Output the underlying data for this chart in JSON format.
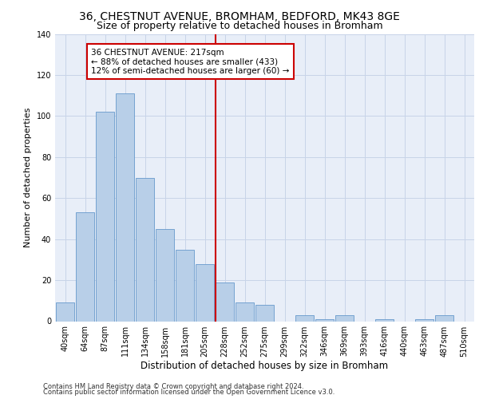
{
  "title_line1": "36, CHESTNUT AVENUE, BROMHAM, BEDFORD, MK43 8GE",
  "title_line2": "Size of property relative to detached houses in Bromham",
  "xlabel": "Distribution of detached houses by size in Bromham",
  "ylabel": "Number of detached properties",
  "bin_labels": [
    "40sqm",
    "64sqm",
    "87sqm",
    "111sqm",
    "134sqm",
    "158sqm",
    "181sqm",
    "205sqm",
    "228sqm",
    "252sqm",
    "275sqm",
    "299sqm",
    "322sqm",
    "346sqm",
    "369sqm",
    "393sqm",
    "416sqm",
    "440sqm",
    "463sqm",
    "487sqm",
    "510sqm"
  ],
  "bar_values": [
    9,
    53,
    102,
    111,
    70,
    45,
    35,
    28,
    19,
    9,
    8,
    0,
    3,
    1,
    3,
    0,
    1,
    0,
    1,
    3,
    0
  ],
  "bar_color": "#b8cfe8",
  "bar_edge_color": "#6699cc",
  "vline_color": "#cc0000",
  "ylim": [
    0,
    140
  ],
  "yticks": [
    0,
    20,
    40,
    60,
    80,
    100,
    120,
    140
  ],
  "annotation_text": "36 CHESTNUT AVENUE: 217sqm\n← 88% of detached houses are smaller (433)\n12% of semi-detached houses are larger (60) →",
  "annotation_box_color": "#ffffff",
  "annotation_box_edgecolor": "#cc0000",
  "grid_color": "#c8d4e8",
  "bg_color": "#e8eef8",
  "footer_line1": "Contains HM Land Registry data © Crown copyright and database right 2024.",
  "footer_line2": "Contains public sector information licensed under the Open Government Licence v3.0.",
  "title1_fontsize": 10,
  "title2_fontsize": 9,
  "ylabel_fontsize": 8,
  "xlabel_fontsize": 8.5,
  "tick_fontsize": 7,
  "footer_fontsize": 6,
  "ann_fontsize": 7.5
}
